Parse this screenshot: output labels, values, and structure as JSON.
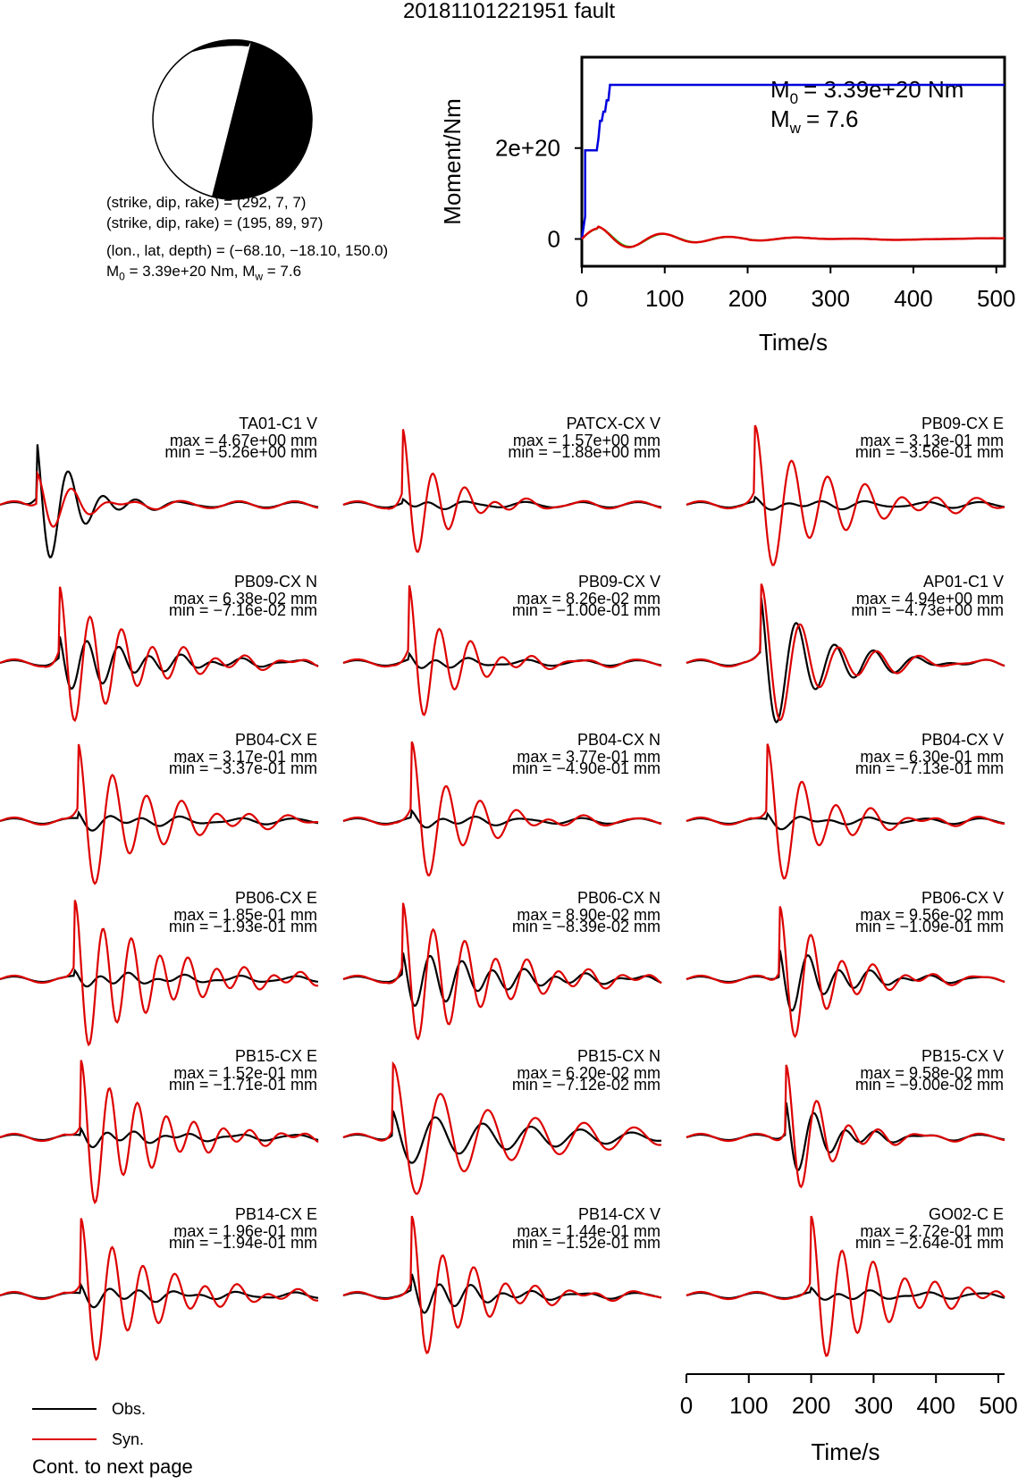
{
  "title": "20181101221951 fault",
  "mechanism": {
    "line1": "(strike, dip, rake) = (292, 7, 7)",
    "line2": "(strike, dip, rake) = (195, 89, 97)",
    "location": "(lon., lat, depth) = (−68.10, −18.10, 150.0)",
    "moment_label": "M0 = 3.39e+20 Nm, Mw = 7.6",
    "m0_prefix": "M",
    "m0_sub": "0",
    "m0_mid": " = 3.39e+20 Nm, M",
    "mw_sub": "w",
    "mw_tail": " = 7.6"
  },
  "moment_plot": {
    "ylabel": "Moment/Nm",
    "xlabel": "Time/s",
    "m0_text": "= 3.39e+20 Nm",
    "mw_text": "= 7.6",
    "colors": {
      "cumulative": "#0000dd",
      "rate_a": "#dd0000",
      "rate_b": "#00cc00"
    }
  },
  "legend": {
    "obs": "Obs.",
    "syn": "Syn.",
    "obs_color": "#000000",
    "syn_color": "#dd0000"
  },
  "bottom_axis": {
    "xlabel": "Time/s"
  },
  "cont_note": "Cont. to next page",
  "chart_data": [
    {
      "type": "line",
      "x_ticks": [
        0,
        100,
        200,
        300,
        400,
        500
      ],
      "y_ticks": [
        "0",
        "2e+20"
      ],
      "xlabel": "Time/s",
      "ylabel": "Moment/Nm",
      "xlim": [
        0,
        510
      ],
      "ylim": [
        -6e+19,
        4e+20
      ],
      "series": [
        {
          "name": "cumulative moment",
          "x": [
            0,
            4,
            4,
            8,
            8,
            18,
            20,
            22,
            24,
            26,
            28,
            30,
            32,
            34,
            36,
            510
          ],
          "y": [
            0,
            5e+19,
            1.95e+20,
            1.95e+20,
            1.95e+20,
            1.95e+20,
            2.2e+20,
            2.6e+20,
            2.6e+20,
            2.8e+20,
            2.8e+20,
            3.05e+20,
            3.05e+20,
            3.39e+20,
            3.39e+20,
            3.39e+20
          ]
        },
        {
          "name": "moment rate",
          "x": [
            0,
            10,
            25,
            40,
            60,
            80,
            100,
            120,
            140,
            160,
            200,
            300,
            400,
            480,
            510
          ],
          "y": [
            0,
            1.5e+19,
            2.2e+19,
            0.0,
            -2.8e+19,
            -2e+18,
            1.8e+19,
            5e+18,
            -6e+18,
            -5e+18,
            2e+18,
            0.0,
            2e+18,
            -3e+18,
            0.0
          ]
        }
      ]
    },
    {
      "type": "line",
      "grid": "6x3",
      "xlabel": "Time/s",
      "x_ticks": [
        0,
        100,
        200,
        300,
        400,
        500
      ],
      "xlim": [
        0,
        510
      ],
      "traces": [
        {
          "station": "TA01-C1 V",
          "max": "max = 4.67e+00 mm",
          "min": "min = −5.26e+00 mm",
          "onset": 60,
          "f": 0.018,
          "syn_amp": 0.45,
          "obs_amp": 1.0,
          "decay": 55
        },
        {
          "station": "PATCX-CX V",
          "max": "max = 1.57e+00 mm",
          "min": "min = −1.88e+00 mm",
          "onset": 95,
          "f": 0.02,
          "syn_amp": 1.0,
          "obs_amp": 0.08,
          "decay": 60
        },
        {
          "station": "PB09-CX E",
          "max": "max = 3.13e-01 mm",
          "min": "min = −3.56e-01 mm",
          "onset": 110,
          "f": 0.017,
          "syn_amp": 1.0,
          "obs_amp": 0.08,
          "decay": 120
        },
        {
          "station": "PB09-CX N",
          "max": "max = 6.38e-02 mm",
          "min": "min = −7.16e-02 mm",
          "onset": 95,
          "f": 0.02,
          "syn_amp": 1.0,
          "obs_amp": 0.45,
          "decay": 110
        },
        {
          "station": "PB09-CX V",
          "max": "max = 8.26e-02 mm",
          "min": "min = −1.00e-01 mm",
          "onset": 105,
          "f": 0.02,
          "syn_amp": 1.0,
          "obs_amp": 0.12,
          "decay": 70
        },
        {
          "station": "AP01-C1 V",
          "max": "max = 4.94e+00 mm",
          "min": "min = −4.73e+00 mm",
          "onset": 120,
          "f": 0.016,
          "syn_amp": 1.0,
          "obs_amp": 1.0,
          "decay": 90
        },
        {
          "station": "PB04-CX E",
          "max": "max = 3.17e-01 mm",
          "min": "min = −3.37e-01 mm",
          "onset": 125,
          "f": 0.018,
          "syn_amp": 1.0,
          "obs_amp": 0.12,
          "decay": 110
        },
        {
          "station": "PB04-CX N",
          "max": "max = 3.77e-01 mm",
          "min": "min = −4.90e-01 mm",
          "onset": 110,
          "f": 0.018,
          "syn_amp": 1.0,
          "obs_amp": 0.12,
          "decay": 80
        },
        {
          "station": "PB04-CX V",
          "max": "max = 6.30e-01 mm",
          "min": "min = −7.13e-01 mm",
          "onset": 130,
          "f": 0.018,
          "syn_amp": 1.0,
          "obs_amp": 0.1,
          "decay": 80
        },
        {
          "station": "PB06-CX E",
          "max": "max = 1.85e-01 mm",
          "min": "min = −1.93e-01 mm",
          "onset": 120,
          "f": 0.022,
          "syn_amp": 1.0,
          "obs_amp": 0.1,
          "decay": 130
        },
        {
          "station": "PB06-CX N",
          "max": "max = 8.90e-02 mm",
          "min": "min = −8.39e-02 mm",
          "onset": 95,
          "f": 0.02,
          "syn_amp": 1.0,
          "obs_amp": 0.45,
          "decay": 130
        },
        {
          "station": "PB06-CX V",
          "max": "max = 9.56e-02 mm",
          "min": "min = −1.09e-01 mm",
          "onset": 150,
          "f": 0.02,
          "syn_amp": 1.0,
          "obs_amp": 0.5,
          "decay": 80
        },
        {
          "station": "PB15-CX E",
          "max": "max = 1.52e-01 mm",
          "min": "min = −1.71e-01 mm",
          "onset": 130,
          "f": 0.022,
          "syn_amp": 1.0,
          "obs_amp": 0.12,
          "decay": 110
        },
        {
          "station": "PB15-CX N",
          "max": "max = 6.20e-02 mm",
          "min": "min = −7.12e-02 mm",
          "onset": 80,
          "f": 0.013,
          "syn_amp": 1.0,
          "obs_amp": 0.45,
          "decay": 160
        },
        {
          "station": "PB15-CX V",
          "max": "max = 9.58e-02 mm",
          "min": "min = −9.00e-02 mm",
          "onset": 160,
          "f": 0.02,
          "syn_amp": 1.0,
          "obs_amp": 0.6,
          "decay": 60
        },
        {
          "station": "PB14-CX E",
          "max": "max = 1.96e-01 mm",
          "min": "min = −1.94e-01 mm",
          "onset": 130,
          "f": 0.02,
          "syn_amp": 1.0,
          "obs_amp": 0.15,
          "decay": 110
        },
        {
          "station": "PB14-CX V",
          "max": "max = 1.44e-01 mm",
          "min": "min = −1.52e-01 mm",
          "onset": 110,
          "f": 0.02,
          "syn_amp": 1.0,
          "obs_amp": 0.3,
          "decay": 90
        },
        {
          "station": "GO02-C E",
          "max": "max = 2.72e-01 mm",
          "min": "min = −2.64e-01 mm",
          "onset": 200,
          "f": 0.02,
          "syn_amp": 1.0,
          "obs_amp": 0.08,
          "decay": 110
        }
      ]
    }
  ]
}
